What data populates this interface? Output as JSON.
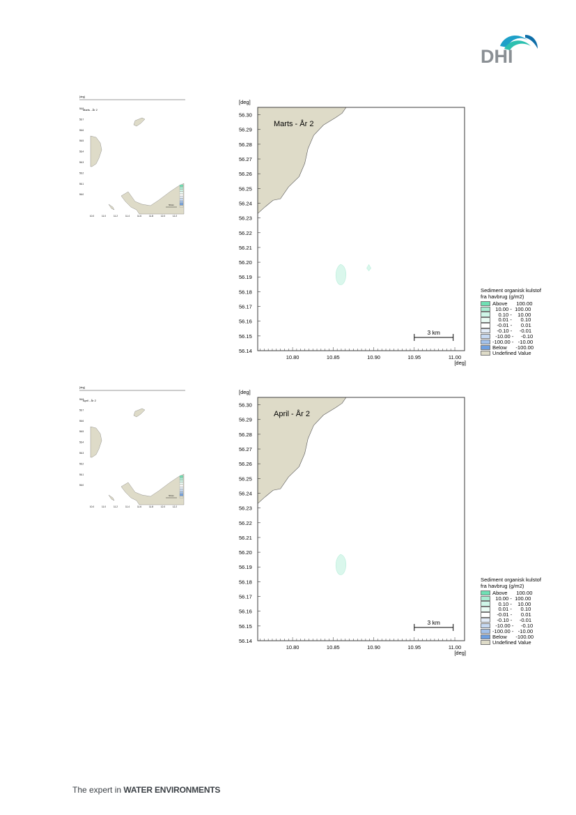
{
  "logo": {
    "text": "DHI"
  },
  "footer": {
    "prefix": "The expert in ",
    "emphasis": "WATER ENVIRONMENTS"
  },
  "axes": {
    "unit": "[deg]",
    "y_ticks": [
      "56.30",
      "56.29",
      "56.28",
      "56.27",
      "56.26",
      "56.25",
      "56.24",
      "56.23",
      "56.22",
      "56.21",
      "56.20",
      "56.19",
      "56.18",
      "56.17",
      "56.16",
      "56.15",
      "56.14"
    ],
    "x_ticks": [
      "10.80",
      "10.85",
      "10.90",
      "10.95",
      "11.00"
    ]
  },
  "overview_axes": {
    "y_ticks": [
      "56.8",
      "56.7",
      "56.6",
      "56.5",
      "56.4",
      "56.3",
      "56.2",
      "56.1",
      "56.0"
    ],
    "x_ticks": [
      "10.0",
      "11.0",
      "11.2",
      "11.4",
      "11.6",
      "11.8",
      "12.0",
      "12.2"
    ],
    "scalebar": "50 km"
  },
  "scalebar": {
    "label": "3 km"
  },
  "legend": {
    "title_line1": "Sediment organisk kulstof",
    "title_line2": "fra havbrug (g/m2)",
    "entries": [
      {
        "label": "Above      100.00",
        "color": "#6fe0b4"
      },
      {
        "label": "  10.00 -  100.00",
        "color": "#a8ecd2"
      },
      {
        "label": "    0.10 -    10.00",
        "color": "#cff6e8"
      },
      {
        "label": "    0.01 -      0.10",
        "color": "#eafbf4"
      },
      {
        "label": "   -0.01 -      0.01",
        "color": "#ffffff"
      },
      {
        "label": "   -0.10 -     -0.01",
        "color": "#e3ecf8"
      },
      {
        "label": "  -10.00 -     -0.10",
        "color": "#c6d9f2"
      },
      {
        "label": "-100.00 -   -10.00",
        "color": "#a3c1ea"
      },
      {
        "label": "Below      -100.00",
        "color": "#6e9fe0"
      },
      {
        "label": "Undefined Value",
        "color": "#dedbc8"
      }
    ]
  },
  "panels": [
    {
      "title": "Marts - År 2",
      "patches": [
        {
          "center": [
            10.86,
            56.191
          ],
          "kind": "large"
        },
        {
          "center": [
            10.894,
            56.196
          ],
          "kind": "small"
        }
      ]
    },
    {
      "title": "April - År 2",
      "patches": [
        {
          "center": [
            10.86,
            56.191
          ],
          "kind": "large"
        }
      ]
    }
  ],
  "colors": {
    "land": "#dedbc8",
    "land_edge": "#555555",
    "patch": "#daf7ec",
    "patch_edge": "#b9eedb"
  }
}
